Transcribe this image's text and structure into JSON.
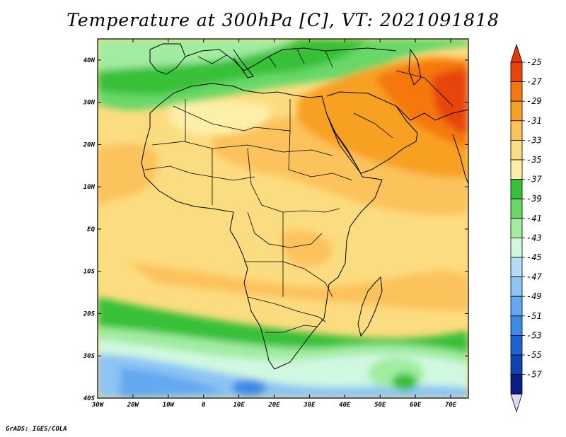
{
  "title": "Temperature at 300hPa [C], VT: 2021091818",
  "credit": "GrADS: IGES/COLA",
  "map": {
    "lon_range": [
      -30,
      75
    ],
    "lat_range": [
      -40,
      45
    ],
    "lat_ticks": [
      {
        "value": 40,
        "label": "40N"
      },
      {
        "value": 30,
        "label": "30N"
      },
      {
        "value": 20,
        "label": "20N"
      },
      {
        "value": 10,
        "label": "10N"
      },
      {
        "value": 0,
        "label": "EQ"
      },
      {
        "value": -10,
        "label": "10S"
      },
      {
        "value": -20,
        "label": "20S"
      },
      {
        "value": -30,
        "label": "30S"
      },
      {
        "value": -40,
        "label": "40S"
      }
    ],
    "lon_ticks": [
      {
        "value": -30,
        "label": "30W"
      },
      {
        "value": -20,
        "label": "20W"
      },
      {
        "value": -10,
        "label": "10W"
      },
      {
        "value": 0,
        "label": "0"
      },
      {
        "value": 10,
        "label": "10E"
      },
      {
        "value": 20,
        "label": "20E"
      },
      {
        "value": 30,
        "label": "30E"
      },
      {
        "value": 40,
        "label": "40E"
      },
      {
        "value": 50,
        "label": "50E"
      },
      {
        "value": 60,
        "label": "60E"
      },
      {
        "value": 70,
        "label": "70E"
      }
    ]
  },
  "colorbar": {
    "labels": [
      "-25",
      "-27",
      "-29",
      "-31",
      "-33",
      "-35",
      "-37",
      "-39",
      "-41",
      "-43",
      "-45",
      "-47",
      "-49",
      "-51",
      "-53",
      "-55",
      "-57"
    ],
    "colors": [
      "#e8450a",
      "#f5780c",
      "#f8a022",
      "#fcc25c",
      "#fcdc80",
      "#fcf0a8",
      "#38c038",
      "#68d868",
      "#a0eca0",
      "#d0f8e0",
      "#b4dcf8",
      "#8cc4f4",
      "#64a8f0",
      "#3c8ae4",
      "#1e64d0",
      "#0c44b0",
      "#0a1e82"
    ],
    "top_arrow_color": "#e8360a",
    "bottom_arrow_color": "#e0d8f8"
  }
}
